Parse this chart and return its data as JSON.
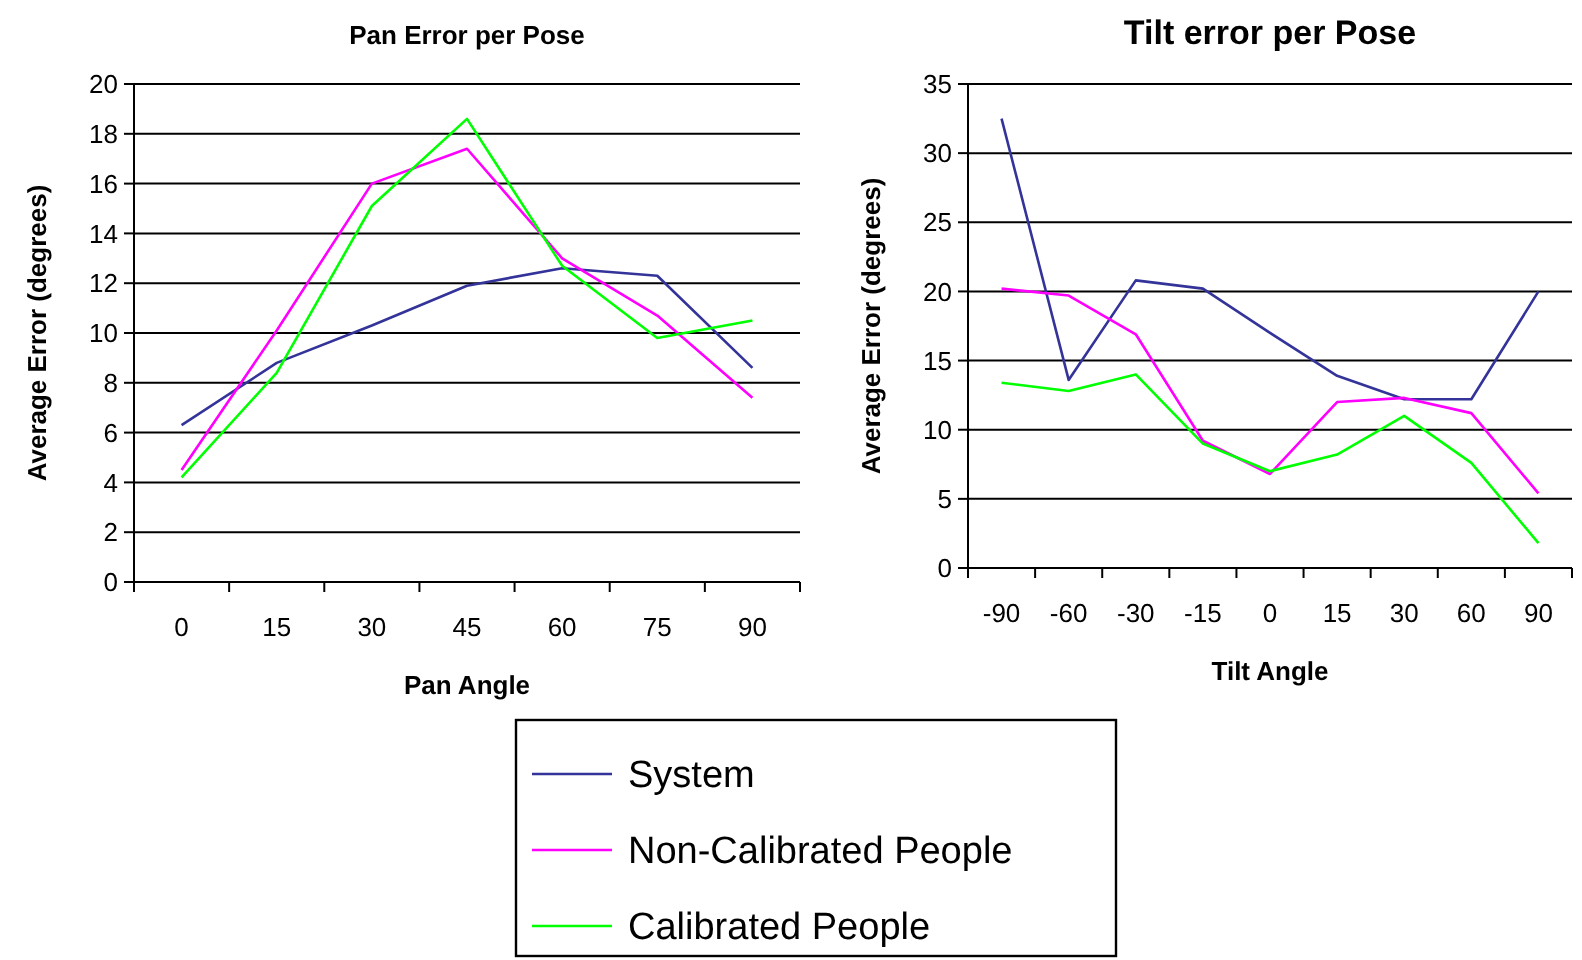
{
  "chart_data": [
    {
      "type": "line",
      "title": "Pan Error per Pose",
      "xlabel": "Pan Angle",
      "ylabel": "Average Error (degrees)",
      "categories": [
        "0",
        "15",
        "30",
        "45",
        "60",
        "75",
        "90"
      ],
      "ylim": [
        0,
        20
      ],
      "yticks": [
        0,
        2,
        4,
        6,
        8,
        10,
        12,
        14,
        16,
        18,
        20
      ],
      "grid": "y",
      "legend": "bottom",
      "marker": "none",
      "line_style": "solid",
      "series": [
        {
          "name": "System",
          "color": "#333399",
          "values": [
            6.3,
            8.8,
            10.3,
            11.9,
            12.6,
            12.3,
            8.6
          ]
        },
        {
          "name": "Non-Calibrated People",
          "color": "#ff00ff",
          "values": [
            4.5,
            10.1,
            16.0,
            17.4,
            13.0,
            10.7,
            7.4
          ]
        },
        {
          "name": "Calibrated People",
          "color": "#00ff00",
          "values": [
            4.2,
            8.4,
            15.1,
            18.6,
            12.7,
            9.8,
            10.5
          ]
        }
      ]
    },
    {
      "type": "line",
      "title": "Tilt error per Pose",
      "xlabel": "Tilt Angle",
      "ylabel": "Average Error (degrees)",
      "categories": [
        "-90",
        "-60",
        "-30",
        "-15",
        "0",
        "15",
        "30",
        "60",
        "90"
      ],
      "ylim": [
        0,
        35
      ],
      "yticks": [
        0,
        5,
        10,
        15,
        20,
        25,
        30,
        35
      ],
      "grid": "y",
      "marker": "none",
      "line_style": "solid",
      "series": [
        {
          "color": "#333399",
          "values": [
            32.5,
            13.6,
            20.8,
            20.2,
            17.0,
            13.9,
            12.2,
            12.2,
            20.0
          ]
        },
        {
          "color": "#ff00ff",
          "values": [
            20.2,
            19.7,
            16.9,
            9.2,
            6.8,
            12.0,
            12.3,
            11.2,
            5.4
          ]
        },
        {
          "color": "#00ff00",
          "values": [
            13.4,
            12.8,
            14.0,
            9.0,
            7.0,
            8.2,
            11.0,
            7.6,
            1.8
          ]
        }
      ]
    }
  ]
}
